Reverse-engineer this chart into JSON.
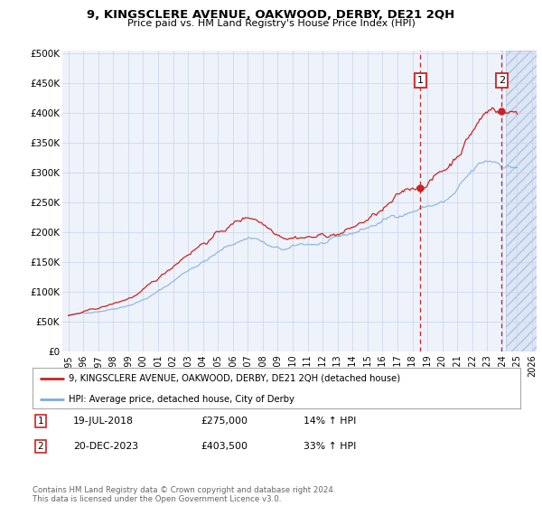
{
  "title": "9, KINGSCLERE AVENUE, OAKWOOD, DERBY, DE21 2QH",
  "subtitle": "Price paid vs. HM Land Registry's House Price Index (HPI)",
  "background_color": "#ffffff",
  "plot_bg_color": "#eef2fa",
  "hatch_bg_color": "#dce6f5",
  "ylim": [
    0,
    500000
  ],
  "yticks": [
    0,
    50000,
    100000,
    150000,
    200000,
    250000,
    300000,
    350000,
    400000,
    450000,
    500000
  ],
  "ytick_labels": [
    "£0",
    "£50K",
    "£100K",
    "£150K",
    "£200K",
    "£250K",
    "£300K",
    "£350K",
    "£400K",
    "£450K",
    "£500K"
  ],
  "xtick_years": [
    1995,
    1996,
    1997,
    1998,
    1999,
    2000,
    2001,
    2002,
    2003,
    2004,
    2005,
    2006,
    2007,
    2008,
    2009,
    2010,
    2011,
    2012,
    2013,
    2014,
    2015,
    2016,
    2017,
    2018,
    2019,
    2020,
    2021,
    2022,
    2023,
    2024,
    2025,
    2026
  ],
  "sale1_x": 2018.54,
  "sale1_y": 275000,
  "sale2_x": 2023.96,
  "sale2_y": 403500,
  "red_line_color": "#cc2222",
  "blue_line_color": "#7aaddd",
  "dashed_line_color": "#cc2222",
  "legend_label_red": "9, KINGSCLERE AVENUE, OAKWOOD, DERBY, DE21 2QH (detached house)",
  "legend_label_blue": "HPI: Average price, detached house, City of Derby",
  "footer_text": "Contains HM Land Registry data © Crown copyright and database right 2024.\nThis data is licensed under the Open Government Licence v3.0.",
  "table_rows": [
    {
      "num": "1",
      "date": "19-JUL-2018",
      "price": "£275,000",
      "hpi": "14% ↑ HPI"
    },
    {
      "num": "2",
      "date": "20-DEC-2023",
      "price": "£403,500",
      "hpi": "33% ↑ HPI"
    }
  ]
}
